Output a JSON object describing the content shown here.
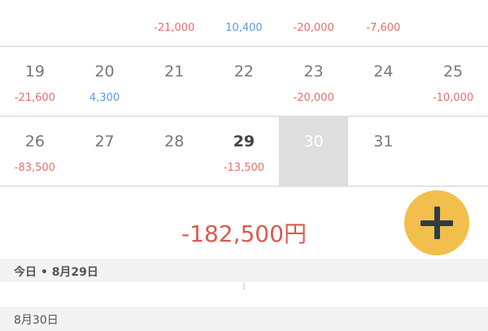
{
  "calendar": {
    "weeks": [
      {
        "days": [
          {
            "day": "",
            "amount": "",
            "sign": ""
          },
          {
            "day": "",
            "amount": "",
            "sign": ""
          },
          {
            "day": "",
            "amount": "-21,000",
            "sign": "neg"
          },
          {
            "day": "",
            "amount": "10,400",
            "sign": "pos"
          },
          {
            "day": "",
            "amount": "-20,000",
            "sign": "neg"
          },
          {
            "day": "",
            "amount": "-7,600",
            "sign": "neg"
          },
          {
            "day": "",
            "amount": "",
            "sign": ""
          }
        ]
      },
      {
        "days": [
          {
            "day": "19",
            "amount": "-21,600",
            "sign": "neg"
          },
          {
            "day": "20",
            "amount": "4,300",
            "sign": "pos"
          },
          {
            "day": "21",
            "amount": "",
            "sign": ""
          },
          {
            "day": "22",
            "amount": "",
            "sign": ""
          },
          {
            "day": "23",
            "amount": "-20,000",
            "sign": "neg"
          },
          {
            "day": "24",
            "amount": "",
            "sign": ""
          },
          {
            "day": "25",
            "amount": "-10,000",
            "sign": "neg"
          }
        ]
      },
      {
        "days": [
          {
            "day": "26",
            "amount": "-83,500",
            "sign": "neg"
          },
          {
            "day": "27",
            "amount": "",
            "sign": ""
          },
          {
            "day": "28",
            "amount": "",
            "sign": ""
          },
          {
            "day": "29",
            "amount": "-13,500",
            "sign": "neg",
            "today": true
          },
          {
            "day": "30",
            "amount": "",
            "sign": "",
            "selected": true
          },
          {
            "day": "31",
            "amount": "",
            "sign": ""
          },
          {
            "day": "",
            "amount": "",
            "sign": ""
          }
        ]
      }
    ]
  },
  "summary": {
    "total": "-182,500円"
  },
  "fab": {
    "icon": "plus-icon"
  },
  "sections": [
    {
      "label": "今日 • 8月29日"
    },
    {
      "label": "8月30日"
    }
  ],
  "colors": {
    "negative": "#e0726a",
    "positive": "#5a9be8",
    "accent": "#f2bf4c",
    "total": "#dc5a4e"
  }
}
